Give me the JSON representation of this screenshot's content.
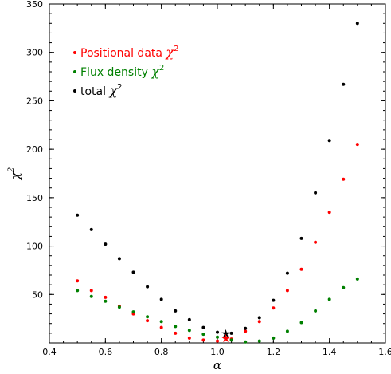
{
  "chart_data": {
    "type": "scatter",
    "xlabel": "α",
    "ylabel_base": "χ",
    "ylabel_sup": "2",
    "xlim": [
      0.4,
      1.6
    ],
    "ylim": [
      0,
      350
    ],
    "x_ticks": [
      0.4,
      0.6,
      0.8,
      1.0,
      1.2,
      1.4,
      1.6
    ],
    "x_tick_labels": [
      "0.4",
      "0.6",
      "0.8",
      "1.0",
      "1.2",
      "1.4",
      "1.6"
    ],
    "y_ticks": [
      50,
      100,
      150,
      200,
      250,
      300,
      350
    ],
    "y_tick_labels": [
      "50",
      "100",
      "150",
      "200",
      "250",
      "300",
      "350"
    ],
    "grid": false,
    "legend_position": "top-left",
    "series": [
      {
        "key": "positional",
        "legend_base": "Positional data ",
        "legend_chi": "χ",
        "legend_sup": "2",
        "color": "#ff0000",
        "x": [
          0.5,
          0.55,
          0.6,
          0.65,
          0.7,
          0.75,
          0.8,
          0.85,
          0.9,
          0.95,
          1.0,
          1.05,
          1.1,
          1.15,
          1.2,
          1.25,
          1.3,
          1.35,
          1.4,
          1.45,
          1.5
        ],
        "y": [
          64,
          54,
          47,
          38,
          30,
          23,
          16,
          10,
          5,
          3,
          2,
          4,
          12,
          22,
          36,
          54,
          76,
          104,
          135,
          169,
          205
        ]
      },
      {
        "key": "flux",
        "legend_base": "Flux density ",
        "legend_chi": "χ",
        "legend_sup": "2",
        "color": "#008000",
        "x": [
          0.5,
          0.55,
          0.6,
          0.65,
          0.7,
          0.75,
          0.8,
          0.85,
          0.9,
          0.95,
          1.0,
          1.05,
          1.1,
          1.15,
          1.2,
          1.25,
          1.3,
          1.35,
          1.4,
          1.45,
          1.5
        ],
        "y": [
          54,
          48,
          43,
          37,
          32,
          27,
          22,
          17,
          13,
          9,
          6,
          3,
          1,
          2,
          5,
          12,
          21,
          33,
          45,
          57,
          66
        ]
      },
      {
        "key": "total",
        "legend_base": "total ",
        "legend_chi": "χ",
        "legend_sup": "2",
        "color": "#000000",
        "x": [
          0.5,
          0.55,
          0.6,
          0.65,
          0.7,
          0.75,
          0.8,
          0.85,
          0.9,
          0.95,
          1.0,
          1.05,
          1.1,
          1.15,
          1.2,
          1.25,
          1.3,
          1.35,
          1.4,
          1.45,
          1.5
        ],
        "y": [
          132,
          117,
          102,
          87,
          73,
          58,
          45,
          33,
          24,
          16,
          11,
          10,
          15,
          26,
          44,
          72,
          108,
          155,
          209,
          267,
          330
        ]
      }
    ],
    "markers": [
      {
        "x": 1.03,
        "y": 10,
        "symbol": "★",
        "color": "#000000"
      },
      {
        "x": 1.03,
        "y": 5,
        "symbol": "★",
        "color": "#ff0000"
      }
    ]
  }
}
